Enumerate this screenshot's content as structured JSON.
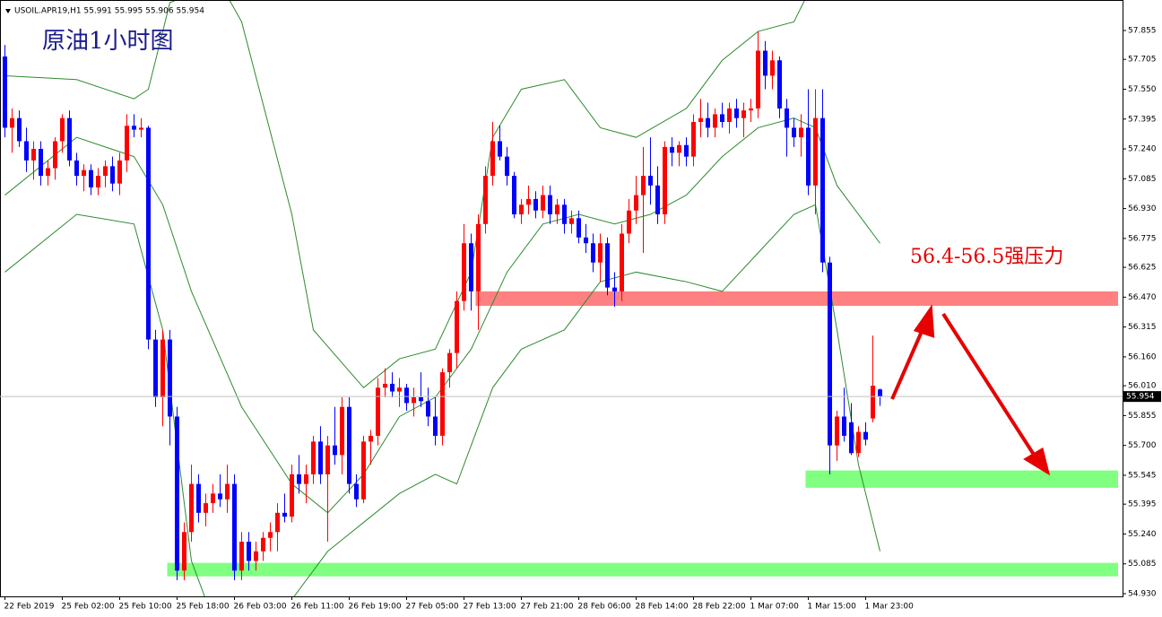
{
  "chart_data": {
    "type": "candlestick",
    "header": "USOIL.APR19,H1  55.991 55.995 55.906 55.954",
    "title": "原油1小时图",
    "annotation": "56.4-56.5强压力",
    "bull_color": "#ff0000",
    "bear_color": "#0000ff",
    "band_color": "#2e8b2e",
    "ylim": [
      54.93,
      57.855
    ],
    "yticks": [
      57.855,
      57.705,
      {
        "value": 57.55,
        "label": "57.550"
      },
      57.395,
      {
        "value": 57.24,
        "label": "57.240"
      },
      57.085,
      {
        "value": 56.93,
        "label": "56.930"
      },
      56.775,
      56.625,
      {
        "value": 56.47,
        "label": "56.470"
      },
      56.315,
      {
        "value": 56.16,
        "label": "56.160"
      },
      {
        "value": 56.01,
        "label": "56.010"
      },
      55.855,
      {
        "value": 55.7,
        "label": "55.700"
      },
      55.545,
      55.395,
      {
        "value": 55.24,
        "label": "55.240"
      },
      55.085,
      {
        "value": 54.93,
        "label": "54.930"
      }
    ],
    "categories": [
      "22 Feb 2019",
      null,
      null,
      null,
      null,
      null,
      null,
      null,
      "25 Feb 02:00",
      null,
      null,
      null,
      null,
      null,
      null,
      null,
      "25 Feb 10:00",
      null,
      null,
      null,
      null,
      null,
      null,
      null,
      "25 Feb 18:00",
      null,
      null,
      null,
      null,
      null,
      null,
      null,
      "26 Feb 03:00",
      null,
      null,
      null,
      null,
      null,
      null,
      null,
      "26 Feb 11:00",
      null,
      null,
      null,
      null,
      null,
      null,
      null,
      "26 Feb 19:00",
      null,
      null,
      null,
      null,
      null,
      null,
      null,
      "27 Feb 05:00",
      null,
      null,
      null,
      null,
      null,
      null,
      null,
      "27 Feb 13:00",
      null,
      null,
      null,
      null,
      null,
      null,
      null,
      "27 Feb 21:00",
      null,
      null,
      null,
      null,
      null,
      null,
      null,
      "28 Feb 06:00",
      null,
      null,
      null,
      null,
      null,
      null,
      null,
      "28 Feb 14:00",
      null,
      null,
      null,
      null,
      null,
      null,
      null,
      "28 Feb 22:00",
      null,
      null,
      null,
      null,
      null,
      null,
      null,
      "1 Mar 07:00",
      null,
      null,
      null,
      null,
      null,
      null,
      null,
      "1 Mar 15:00",
      null,
      null,
      null,
      null,
      null,
      null,
      null,
      "1 Mar 23:00",
      null,
      null
    ],
    "candles": [
      [
        57.72,
        57.78,
        57.3,
        57.35
      ],
      [
        57.35,
        57.45,
        57.22,
        57.4
      ],
      [
        57.4,
        57.44,
        57.25,
        57.28
      ],
      [
        57.28,
        57.35,
        57.12,
        57.18
      ],
      [
        57.18,
        57.28,
        57.08,
        57.24
      ],
      [
        57.24,
        57.28,
        57.05,
        57.1
      ],
      [
        57.1,
        57.18,
        57.05,
        57.14
      ],
      [
        57.14,
        57.3,
        57.08,
        57.28
      ],
      [
        57.28,
        57.42,
        57.22,
        57.4
      ],
      [
        57.4,
        57.44,
        57.15,
        57.18
      ],
      [
        57.18,
        57.22,
        57.05,
        57.1
      ],
      [
        57.1,
        57.16,
        57.02,
        57.13
      ],
      [
        57.13,
        57.16,
        57.0,
        57.04
      ],
      [
        57.04,
        57.14,
        57.0,
        57.1
      ],
      [
        57.1,
        57.18,
        57.04,
        57.15
      ],
      [
        57.15,
        57.2,
        57.02,
        57.06
      ],
      [
        57.06,
        57.22,
        57.0,
        57.18
      ],
      [
        57.18,
        57.42,
        57.12,
        57.36
      ],
      [
        57.36,
        57.42,
        57.3,
        57.34
      ],
      [
        57.34,
        57.4,
        57.3,
        57.35
      ],
      [
        57.35,
        57.36,
        56.2,
        56.25
      ],
      [
        56.25,
        56.3,
        55.9,
        55.95
      ],
      [
        55.95,
        56.3,
        55.8,
        56.25
      ],
      [
        56.25,
        56.3,
        55.7,
        55.85
      ],
      [
        55.85,
        55.9,
        55.0,
        55.05
      ],
      [
        55.05,
        55.3,
        55.0,
        55.25
      ],
      [
        55.25,
        55.6,
        55.2,
        55.5
      ],
      [
        55.5,
        55.55,
        55.3,
        55.35
      ],
      [
        55.35,
        55.45,
        55.28,
        55.4
      ],
      [
        55.4,
        55.5,
        55.35,
        55.45
      ],
      [
        55.45,
        55.55,
        55.38,
        55.42
      ],
      [
        55.42,
        55.6,
        55.35,
        55.5
      ],
      [
        55.5,
        55.55,
        55.0,
        55.05
      ],
      [
        55.05,
        55.25,
        55.0,
        55.2
      ],
      [
        55.2,
        55.25,
        55.05,
        55.1
      ],
      [
        55.1,
        55.2,
        55.05,
        55.15
      ],
      [
        55.15,
        55.25,
        55.1,
        55.22
      ],
      [
        55.22,
        55.3,
        55.15,
        55.25
      ],
      [
        55.25,
        55.4,
        55.15,
        55.35
      ],
      [
        55.35,
        55.45,
        55.3,
        55.33
      ],
      [
        55.33,
        55.6,
        55.3,
        55.55
      ],
      [
        55.55,
        55.65,
        55.45,
        55.5
      ],
      [
        55.5,
        55.6,
        55.4,
        55.55
      ],
      [
        55.55,
        55.75,
        55.5,
        55.72
      ],
      [
        55.72,
        55.8,
        55.5,
        55.55
      ],
      [
        55.55,
        55.75,
        55.2,
        55.7
      ],
      [
        55.7,
        55.9,
        55.6,
        55.65
      ],
      [
        55.65,
        55.95,
        55.55,
        55.9
      ],
      [
        55.9,
        55.95,
        55.45,
        55.5
      ],
      [
        55.5,
        55.55,
        55.38,
        55.42
      ],
      [
        55.42,
        55.75,
        55.4,
        55.72
      ],
      [
        55.72,
        55.78,
        55.6,
        55.75
      ],
      [
        55.75,
        56.05,
        55.7,
        56.0
      ],
      [
        56.0,
        56.1,
        55.95,
        56.02
      ],
      [
        56.02,
        56.08,
        55.95,
        55.98
      ],
      [
        55.98,
        56.05,
        55.9,
        56.0
      ],
      [
        56.0,
        56.02,
        55.88,
        55.92
      ],
      [
        55.92,
        56.0,
        55.85,
        55.95
      ],
      [
        55.95,
        56.08,
        55.9,
        55.93
      ],
      [
        55.93,
        56.0,
        55.8,
        55.85
      ],
      [
        55.85,
        55.95,
        55.7,
        55.75
      ],
      [
        55.75,
        56.1,
        55.7,
        56.08
      ],
      [
        56.08,
        56.2,
        56.0,
        56.18
      ],
      [
        56.18,
        56.5,
        56.1,
        56.45
      ],
      [
        56.45,
        56.85,
        56.4,
        56.75
      ],
      [
        56.75,
        56.8,
        56.4,
        56.5
      ],
      [
        56.5,
        56.9,
        56.3,
        56.85
      ],
      [
        56.85,
        57.15,
        56.8,
        57.1
      ],
      [
        57.1,
        57.38,
        57.05,
        57.28
      ],
      [
        57.28,
        57.36,
        57.18,
        57.2
      ],
      [
        57.2,
        57.25,
        57.05,
        57.1
      ],
      [
        57.1,
        57.12,
        56.88,
        56.9
      ],
      [
        56.9,
        56.98,
        56.85,
        56.95
      ],
      [
        56.95,
        57.05,
        56.9,
        56.98
      ],
      [
        56.98,
        57.02,
        56.88,
        56.92
      ],
      [
        56.92,
        57.05,
        56.88,
        57.0
      ],
      [
        57.0,
        57.05,
        56.85,
        56.9
      ],
      [
        56.9,
        56.98,
        56.85,
        56.95
      ],
      [
        56.95,
        56.98,
        56.8,
        56.85
      ],
      [
        56.85,
        56.92,
        56.8,
        56.88
      ],
      [
        56.88,
        56.92,
        56.75,
        56.78
      ],
      [
        56.78,
        56.85,
        56.7,
        56.75
      ],
      [
        56.75,
        56.8,
        56.6,
        56.65
      ],
      [
        56.65,
        56.8,
        56.55,
        56.75
      ],
      [
        56.75,
        56.78,
        56.48,
        56.52
      ],
      [
        56.52,
        56.6,
        56.42,
        56.5
      ],
      [
        56.5,
        56.85,
        56.45,
        56.8
      ],
      [
        56.8,
        56.98,
        56.75,
        56.92
      ],
      [
        56.92,
        57.1,
        56.85,
        57.0
      ],
      [
        57.0,
        57.25,
        56.7,
        57.1
      ],
      [
        57.1,
        57.3,
        56.95,
        57.05
      ],
      [
        57.05,
        57.15,
        56.85,
        56.9
      ],
      [
        56.9,
        57.28,
        56.85,
        57.25
      ],
      [
        57.25,
        57.3,
        57.15,
        57.22
      ],
      [
        57.22,
        57.28,
        57.15,
        57.26
      ],
      [
        57.26,
        57.3,
        57.15,
        57.2
      ],
      [
        57.2,
        57.42,
        57.15,
        57.38
      ],
      [
        57.38,
        57.5,
        57.3,
        57.4
      ],
      [
        57.4,
        57.48,
        57.3,
        57.35
      ],
      [
        57.35,
        57.45,
        57.3,
        57.42
      ],
      [
        57.42,
        57.48,
        57.35,
        57.38
      ],
      [
        57.38,
        57.48,
        57.32,
        57.45
      ],
      [
        57.45,
        57.5,
        57.35,
        57.4
      ],
      [
        57.4,
        57.48,
        57.3,
        57.44
      ],
      [
        57.44,
        57.5,
        57.38,
        57.45
      ],
      [
        57.45,
        57.85,
        57.4,
        57.75
      ],
      [
        57.75,
        57.8,
        57.55,
        57.62
      ],
      [
        57.62,
        57.75,
        57.55,
        57.7
      ],
      [
        57.7,
        57.72,
        57.4,
        57.45
      ],
      [
        57.45,
        57.5,
        57.2,
        57.35
      ],
      [
        57.35,
        57.4,
        57.25,
        57.3
      ],
      [
        57.3,
        57.42,
        57.2,
        57.35
      ],
      [
        57.35,
        57.55,
        57.0,
        57.05
      ],
      [
        57.05,
        57.55,
        56.9,
        57.4
      ],
      [
        57.4,
        57.55,
        56.6,
        56.65
      ],
      [
        56.65,
        56.68,
        55.55,
        55.7
      ],
      [
        55.7,
        55.88,
        55.62,
        55.85
      ],
      [
        55.85,
        56.0,
        55.72,
        55.75
      ],
      [
        55.82,
        55.92,
        55.65,
        55.66
      ],
      [
        55.66,
        55.8,
        55.64,
        55.77
      ],
      [
        55.77,
        55.82,
        55.7,
        55.73
      ],
      [
        55.84,
        56.27,
        55.82,
        56.01
      ],
      [
        55.991,
        55.995,
        55.906,
        55.954
      ]
    ],
    "bands": [
      {
        "x": [
          0,
          10,
          18,
          20,
          23,
          30,
          33,
          40,
          43,
          50,
          55,
          60,
          65,
          68,
          72,
          78,
          83,
          88,
          95,
          100,
          105,
          110,
          114,
          116
        ],
        "values": [
          57.62,
          57.6,
          57.5,
          57.55,
          58.0,
          58.1,
          57.9,
          56.9,
          56.3,
          56.0,
          56.15,
          56.2,
          56.6,
          57.3,
          57.55,
          57.6,
          57.35,
          57.3,
          57.45,
          57.7,
          57.85,
          57.9,
          58.2,
          58.4
        ]
      },
      {
        "x": [
          0,
          10,
          18,
          22,
          26,
          33,
          40,
          45,
          50,
          55,
          60,
          65,
          70,
          75,
          80,
          85,
          90,
          95,
          100,
          105,
          110,
          113,
          116,
          122
        ],
        "values": [
          57.0,
          57.3,
          57.2,
          56.95,
          56.5,
          55.9,
          55.5,
          55.35,
          55.55,
          55.85,
          55.95,
          56.2,
          56.6,
          56.85,
          56.9,
          56.85,
          56.9,
          57.0,
          57.2,
          57.35,
          57.4,
          57.35,
          57.05,
          56.75
        ]
      },
      {
        "x": [
          0,
          10,
          18,
          22,
          26,
          28,
          33,
          40,
          45,
          50,
          55,
          60,
          63,
          65,
          68,
          72,
          78,
          83,
          88,
          95,
          100,
          105,
          110,
          113,
          116,
          119,
          122
        ],
        "values": [
          56.6,
          56.9,
          56.85,
          56.3,
          55.1,
          54.9,
          54.8,
          54.9,
          55.15,
          55.3,
          55.45,
          55.55,
          55.5,
          55.7,
          56.0,
          56.2,
          56.3,
          56.55,
          56.6,
          56.55,
          56.5,
          56.7,
          56.9,
          56.95,
          56.3,
          55.6,
          55.15
        ]
      }
    ],
    "zones": [
      {
        "from": 56.425,
        "to": 56.5,
        "start": 66,
        "color": "#ff8080"
      },
      {
        "from": 55.48,
        "to": 55.57,
        "start": 112,
        "color": "#80ff80"
      },
      {
        "from": 55.02,
        "to": 55.09,
        "start": 23,
        "color": "#80ff80"
      }
    ]
  }
}
